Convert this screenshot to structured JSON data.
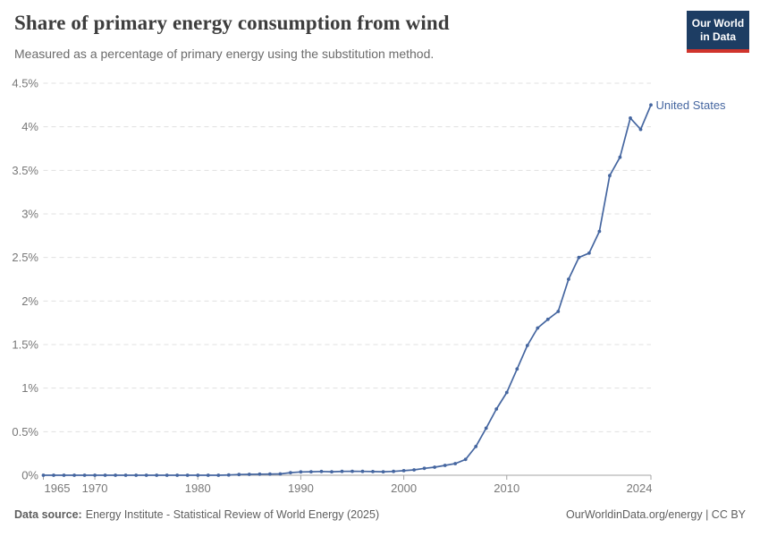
{
  "header": {
    "title": "Share of primary energy consumption from wind",
    "subtitle": "Measured as a percentage of primary energy using the substitution method.",
    "logo": {
      "line1": "Our World",
      "line2": "in Data"
    }
  },
  "footer": {
    "source_label": "Data source:",
    "source_text": "Energy Institute - Statistical Review of World Energy (2025)",
    "right_text": "OurWorldinData.org/energy | CC BY"
  },
  "colors": {
    "line": "#4566a0",
    "entity_label": "#4566a0",
    "gridline": "#e0e0e0",
    "axis_line": "#a3a3a3",
    "tick_label": "#787878",
    "title": "#3d3d3d",
    "subtitle": "#6b6b6b",
    "footer": "#5f5f5f",
    "logo_bg": "#1d3d63",
    "logo_bar": "#d0342c"
  },
  "chart_data": {
    "type": "line",
    "title": "Share of primary energy consumption from wind",
    "subtitle": "Measured as a percentage of primary energy using the substitution method.",
    "xlabel": "",
    "ylabel": "",
    "xlim": [
      1965,
      2024
    ],
    "ylim": [
      0,
      4.5
    ],
    "grid": "horizontal-dashed",
    "legend_position": "end-of-line-label",
    "yticks": [
      {
        "value": 0,
        "label": "0%"
      },
      {
        "value": 0.5,
        "label": "0.5%"
      },
      {
        "value": 1,
        "label": "1%"
      },
      {
        "value": 1.5,
        "label": "1.5%"
      },
      {
        "value": 2,
        "label": "2%"
      },
      {
        "value": 2.5,
        "label": "2.5%"
      },
      {
        "value": 3,
        "label": "3%"
      },
      {
        "value": 3.5,
        "label": "3.5%"
      },
      {
        "value": 4,
        "label": "4%"
      },
      {
        "value": 4.5,
        "label": "4.5%"
      }
    ],
    "xticks": [
      {
        "year": 1965,
        "label": "1965",
        "align": "start"
      },
      {
        "year": 1970,
        "label": "1970",
        "align": "middle"
      },
      {
        "year": 1980,
        "label": "1980",
        "align": "middle"
      },
      {
        "year": 1990,
        "label": "1990",
        "align": "middle"
      },
      {
        "year": 2000,
        "label": "2000",
        "align": "middle"
      },
      {
        "year": 2010,
        "label": "2010",
        "align": "middle"
      },
      {
        "year": 2024,
        "label": "2024",
        "align": "end"
      }
    ],
    "x": [
      1965,
      1966,
      1967,
      1968,
      1969,
      1970,
      1971,
      1972,
      1973,
      1974,
      1975,
      1976,
      1977,
      1978,
      1979,
      1980,
      1981,
      1982,
      1983,
      1984,
      1985,
      1986,
      1987,
      1988,
      1989,
      1990,
      1991,
      1992,
      1993,
      1994,
      1995,
      1996,
      1997,
      1998,
      1999,
      2000,
      2001,
      2002,
      2003,
      2004,
      2005,
      2006,
      2007,
      2008,
      2009,
      2010,
      2011,
      2012,
      2013,
      2014,
      2015,
      2016,
      2017,
      2018,
      2019,
      2020,
      2021,
      2022,
      2023,
      2024
    ],
    "series": [
      {
        "name": "United States",
        "values": [
          0,
          0,
          0,
          0,
          0,
          0,
          0,
          0,
          0,
          0,
          0,
          0,
          0,
          0,
          0,
          0,
          0,
          0,
          0.003,
          0.008,
          0.01,
          0.012,
          0.013,
          0.015,
          0.03,
          0.038,
          0.04,
          0.043,
          0.04,
          0.044,
          0.045,
          0.044,
          0.042,
          0.04,
          0.044,
          0.052,
          0.062,
          0.079,
          0.092,
          0.113,
          0.134,
          0.182,
          0.33,
          0.54,
          0.76,
          0.95,
          1.22,
          1.49,
          1.69,
          1.79,
          1.88,
          2.25,
          2.5,
          2.55,
          2.8,
          3.44,
          3.65,
          4.1,
          3.97,
          4.25
        ]
      }
    ]
  }
}
